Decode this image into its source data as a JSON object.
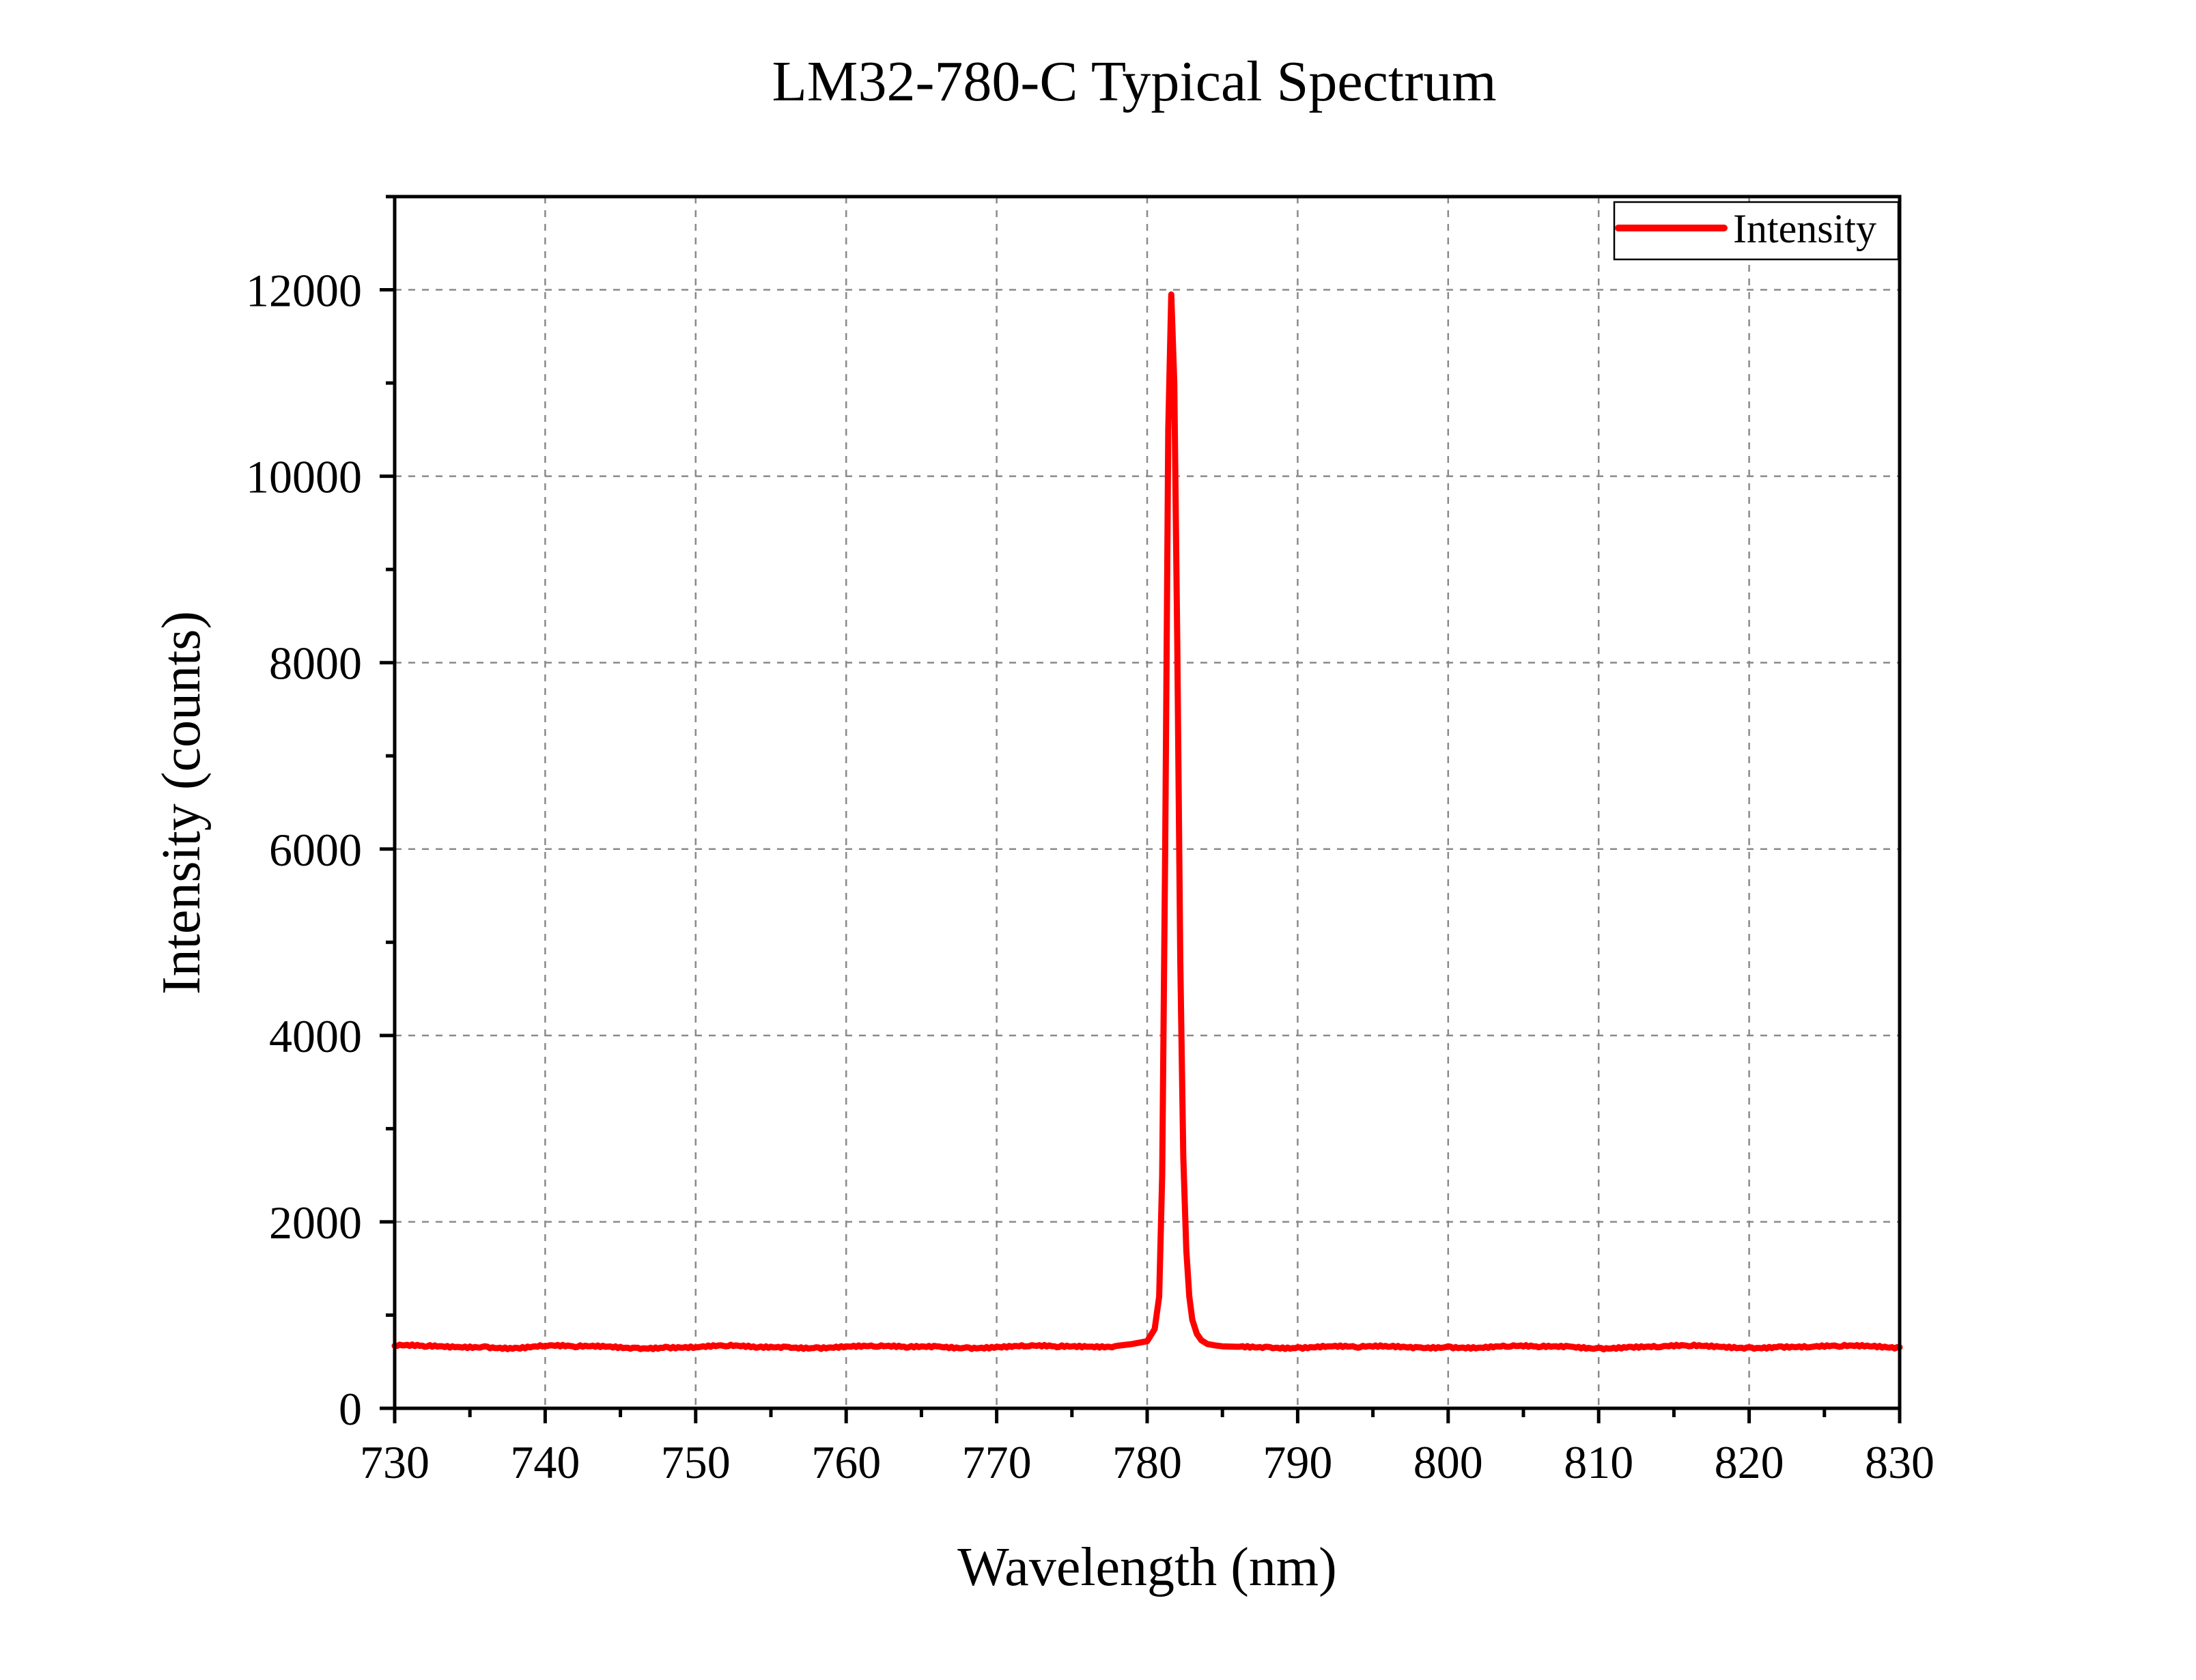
{
  "chart_data": {
    "type": "line",
    "title": "LM32-780-C Typical Spectrum",
    "xlabel": "Wavelength (nm)",
    "ylabel": "Intensity (counts)",
    "xlim": [
      730,
      830
    ],
    "ylim": [
      0,
      13000
    ],
    "xticks": [
      730,
      740,
      750,
      760,
      770,
      780,
      790,
      800,
      810,
      820,
      830
    ],
    "yticks": [
      0,
      2000,
      4000,
      6000,
      8000,
      10000,
      12000
    ],
    "grid": true,
    "legend_position": "top-right",
    "series": [
      {
        "name": "Intensity",
        "color": "#ff0000",
        "x": [
          730,
          732,
          734,
          736,
          738,
          740,
          742,
          744,
          746,
          748,
          750,
          752,
          754,
          756,
          758,
          760,
          762,
          764,
          766,
          768,
          770,
          772,
          774,
          776,
          778,
          779,
          780,
          780.5,
          780.8,
          781.0,
          781.2,
          781.4,
          781.6,
          781.8,
          782.0,
          782.2,
          782.4,
          782.6,
          782.8,
          783.0,
          783.3,
          783.6,
          784.0,
          784.5,
          785,
          786,
          788,
          790,
          792,
          794,
          796,
          798,
          800,
          802,
          804,
          806,
          808,
          810,
          812,
          814,
          816,
          818,
          820,
          822,
          824,
          826,
          828,
          830
        ],
        "y": [
          670,
          660,
          655,
          665,
          650,
          670,
          655,
          660,
          650,
          660,
          655,
          665,
          650,
          660,
          655,
          665,
          660,
          650,
          665,
          655,
          660,
          665,
          655,
          660,
          670,
          690,
          720,
          850,
          1200,
          2500,
          6000,
          10500,
          11950,
          11000,
          8200,
          4800,
          2700,
          1700,
          1200,
          950,
          800,
          730,
          690,
          675,
          665,
          660,
          660,
          655,
          665,
          650,
          660,
          655,
          665,
          650,
          660,
          655,
          665,
          650,
          660,
          655,
          665,
          660,
          655,
          665,
          655,
          660,
          665,
          655
        ]
      }
    ]
  }
}
